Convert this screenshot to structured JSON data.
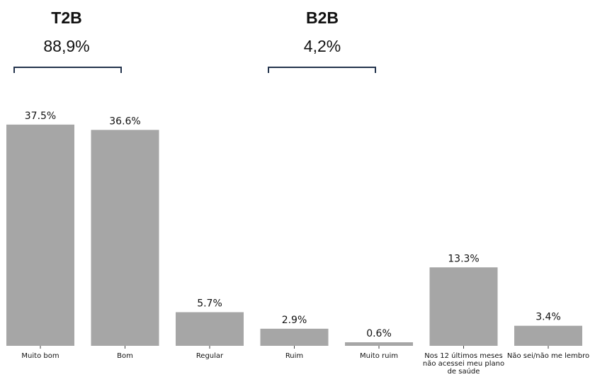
{
  "groups": {
    "t2b": {
      "title": "T2B",
      "value": "88,9%"
    },
    "b2b": {
      "title": "B2B",
      "value": "4,2%"
    }
  },
  "colors": {
    "bar": "#a6a6a6",
    "bracket": "#24344d"
  },
  "chart_data": {
    "type": "bar",
    "categories": [
      [
        "Muito bom"
      ],
      [
        "Bom"
      ],
      [
        "Regular"
      ],
      [
        "Ruim"
      ],
      [
        "Muito ruim"
      ],
      [
        "Nos 12 últimos meses",
        "não acessei meu plano",
        "de saúde"
      ],
      [
        "Não sei/não me lembro"
      ]
    ],
    "values": [
      37.5,
      36.6,
      5.7,
      2.9,
      0.6,
      13.3,
      3.4
    ],
    "labels": [
      "37.5%",
      "36.6%",
      "5.7%",
      "2.9%",
      "0.6%",
      "13.3%",
      "3.4%"
    ],
    "title": "",
    "xlabel": "",
    "ylabel": "",
    "ylim": [
      0,
      40
    ],
    "grid": false
  }
}
